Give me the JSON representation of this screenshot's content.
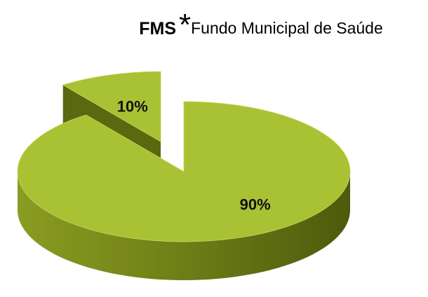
{
  "chart_data": {
    "type": "pie",
    "title": "FMS",
    "title_symbol": "*",
    "subtitle": "Fundo Municipal de Saúde",
    "values": [
      90,
      10
    ],
    "value_labels": [
      "90%",
      "10%"
    ],
    "colors": [
      "#a9c234",
      "#a9c234"
    ]
  }
}
